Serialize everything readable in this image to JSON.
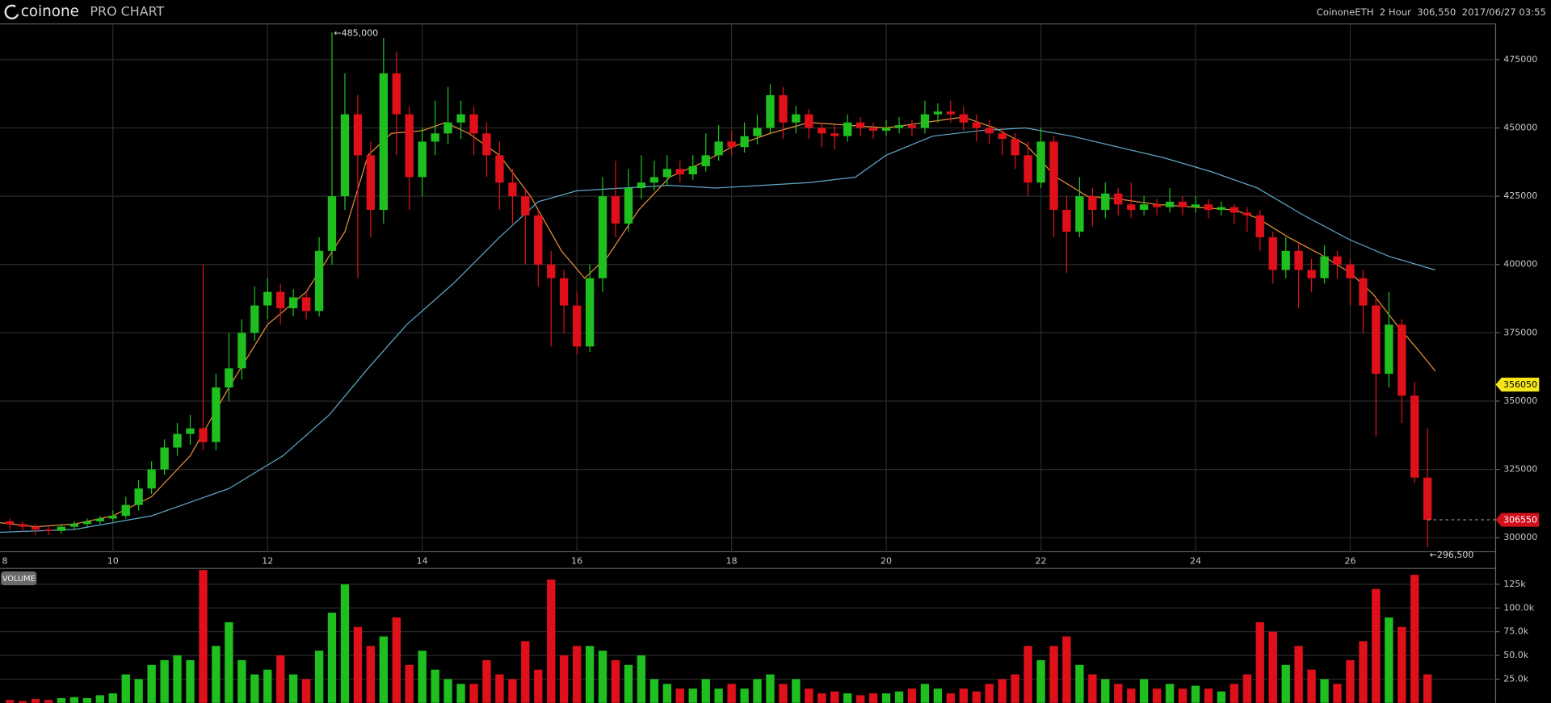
{
  "header": {
    "logo": "coinone",
    "product": "PRO CHART",
    "symbol": "CoinoneETH",
    "interval": "2 Hour",
    "price": "306,550",
    "time": "2017/06/27 03:55"
  },
  "chart_data": [
    {
      "type": "candlestick",
      "x": [
        8.667,
        8.833,
        9,
        9.167,
        9.333,
        9.5,
        9.667,
        9.833,
        10,
        10.167,
        10.333,
        10.5,
        10.667,
        10.833,
        11,
        11.167,
        11.333,
        11.5,
        11.667,
        11.833,
        12,
        12.167,
        12.333,
        12.5,
        12.667,
        12.833,
        13,
        13.167,
        13.333,
        13.5,
        13.667,
        13.833,
        14,
        14.167,
        14.333,
        14.5,
        14.667,
        14.833,
        15,
        15.167,
        15.333,
        15.5,
        15.667,
        15.833,
        16,
        16.167,
        16.333,
        16.5,
        16.667,
        16.833,
        17,
        17.167,
        17.333,
        17.5,
        17.667,
        17.833,
        18,
        18.167,
        18.333,
        18.5,
        18.667,
        18.833,
        19,
        19.167,
        19.333,
        19.5,
        19.667,
        19.833,
        20,
        20.167,
        20.333,
        20.5,
        20.667,
        20.833,
        21,
        21.167,
        21.333,
        21.5,
        21.667,
        21.833,
        22,
        22.167,
        22.333,
        22.5,
        22.667,
        22.833,
        23,
        23.167,
        23.333,
        23.5,
        23.667,
        23.833,
        24,
        24.167,
        24.333,
        24.5,
        24.667,
        24.833,
        25,
        25.167,
        25.333,
        25.5,
        25.667,
        25.833,
        26,
        26.167,
        26.333,
        26.5,
        26.667,
        26.833,
        27
      ],
      "open": [
        306000,
        305000,
        304000,
        303000,
        302500,
        304000,
        305000,
        306000,
        307000,
        308000,
        312000,
        318000,
        325000,
        333000,
        338000,
        340000,
        335000,
        355000,
        362000,
        375000,
        385000,
        390000,
        384000,
        388000,
        383000,
        405000,
        425000,
        455000,
        440000,
        420000,
        470000,
        455000,
        432000,
        445000,
        448000,
        452000,
        455000,
        448000,
        440000,
        430000,
        425000,
        418000,
        400000,
        395000,
        385000,
        370000,
        395000,
        425000,
        415000,
        428000,
        430000,
        432000,
        435000,
        433000,
        436000,
        440000,
        445000,
        443000,
        447000,
        450000,
        462000,
        452000,
        455000,
        450000,
        448000,
        447000,
        452000,
        450000,
        449000,
        450000,
        451000,
        450000,
        455000,
        456000,
        455000,
        452000,
        450000,
        448000,
        446000,
        440000,
        430000,
        445000,
        420000,
        412000,
        425000,
        420000,
        426000,
        422000,
        420000,
        422000,
        421000,
        423000,
        421000,
        422000,
        420000,
        421000,
        419000,
        418000,
        410000,
        398000,
        405000,
        398000,
        395000,
        403000,
        400000,
        395000,
        385000,
        360000,
        378000,
        352000,
        322000
      ],
      "high": [
        307000,
        306000,
        305000,
        304000,
        305000,
        306000,
        307000,
        308000,
        310000,
        315000,
        321000,
        328000,
        336000,
        342000,
        345000,
        400000,
        360000,
        375000,
        380000,
        392000,
        395000,
        393000,
        391000,
        390000,
        410000,
        485000,
        470000,
        462000,
        445000,
        483000,
        478000,
        458000,
        450000,
        460000,
        465000,
        460000,
        458000,
        452000,
        445000,
        435000,
        428000,
        420000,
        405000,
        398000,
        390000,
        400000,
        432000,
        438000,
        435000,
        440000,
        438000,
        440000,
        438000,
        440000,
        448000,
        451000,
        449000,
        452000,
        455000,
        466000,
        465000,
        458000,
        457000,
        452000,
        451000,
        455000,
        454000,
        452000,
        453000,
        454000,
        453000,
        460000,
        459000,
        460000,
        458000,
        455000,
        453000,
        450000,
        448000,
        445000,
        450000,
        447000,
        425000,
        432000,
        428000,
        430000,
        428000,
        430000,
        425000,
        424000,
        428000,
        425000,
        425000,
        424000,
        423000,
        422000,
        421000,
        420000,
        412000,
        410000,
        408000,
        402000,
        407000,
        405000,
        402000,
        398000,
        388000,
        390000,
        380000,
        357000,
        340000
      ],
      "low": [
        303000,
        302000,
        301000,
        301000,
        301500,
        303000,
        304000,
        305000,
        306000,
        307000,
        310000,
        316000,
        323000,
        330000,
        334000,
        332000,
        332000,
        350000,
        358000,
        372000,
        380000,
        378000,
        381000,
        380000,
        381000,
        400000,
        420000,
        395000,
        410000,
        415000,
        440000,
        420000,
        425000,
        440000,
        444000,
        446000,
        440000,
        432000,
        420000,
        415000,
        400000,
        392000,
        370000,
        375000,
        367000,
        368000,
        390000,
        410000,
        412000,
        424000,
        427000,
        429000,
        430000,
        431000,
        434000,
        438000,
        440000,
        441000,
        444000,
        448000,
        446000,
        448000,
        446000,
        443000,
        442000,
        445000,
        447000,
        446000,
        447000,
        448000,
        447000,
        448000,
        452000,
        452000,
        449000,
        445000,
        444000,
        440000,
        435000,
        425000,
        428000,
        410000,
        397000,
        410000,
        414000,
        417000,
        418000,
        417000,
        418000,
        418000,
        419000,
        418000,
        419000,
        417000,
        418000,
        415000,
        412000,
        405000,
        393000,
        395000,
        384000,
        390000,
        393000,
        395000,
        385000,
        375000,
        337000,
        355000,
        342000,
        320000,
        296500
      ],
      "close": [
        305000,
        304000,
        303000,
        302500,
        304000,
        305000,
        306000,
        307000,
        308000,
        312000,
        318000,
        325000,
        333000,
        338000,
        340000,
        335000,
        355000,
        362000,
        375000,
        385000,
        390000,
        384000,
        388000,
        383000,
        405000,
        425000,
        455000,
        440000,
        420000,
        470000,
        455000,
        432000,
        445000,
        448000,
        452000,
        455000,
        448000,
        440000,
        430000,
        425000,
        418000,
        400000,
        395000,
        385000,
        370000,
        395000,
        425000,
        415000,
        428000,
        430000,
        432000,
        435000,
        433000,
        436000,
        440000,
        445000,
        443000,
        447000,
        450000,
        462000,
        452000,
        455000,
        450000,
        448000,
        447000,
        452000,
        450000,
        449000,
        450000,
        451000,
        450000,
        455000,
        456000,
        455000,
        452000,
        450000,
        448000,
        446000,
        440000,
        430000,
        445000,
        420000,
        412000,
        425000,
        420000,
        426000,
        422000,
        420000,
        422000,
        421000,
        423000,
        421000,
        422000,
        420000,
        421000,
        419000,
        418000,
        410000,
        398000,
        405000,
        398000,
        395000,
        403000,
        400000,
        395000,
        385000,
        360000,
        378000,
        352000,
        322000,
        306550
      ],
      "up_color": "#1fbf1f",
      "down_color": "#e0101a",
      "lines": [
        {
          "color": "#e8903a",
          "x": [
            8.54,
            9,
            9.5,
            10,
            10.5,
            11,
            11.5,
            12,
            12.5,
            13,
            13.3,
            13.6,
            14,
            14.3,
            14.6,
            15,
            15.4,
            15.8,
            16.1,
            16.4,
            16.8,
            17.2,
            17.6,
            18,
            18.5,
            19,
            19.5,
            20,
            20.5,
            21,
            21.4,
            21.8,
            22.2,
            22.6,
            23,
            23.5,
            24,
            24.5,
            24.8,
            25.2,
            25.6,
            26,
            26.3,
            26.6,
            26.9,
            27.1
          ],
          "values": [
            305500,
            304000,
            305000,
            308000,
            315000,
            330000,
            355000,
            378000,
            390000,
            412000,
            440000,
            448000,
            449000,
            452000,
            448000,
            440000,
            425000,
            405000,
            395000,
            403000,
            420000,
            432000,
            437000,
            443000,
            448000,
            452000,
            451000,
            450000,
            452000,
            454000,
            450000,
            444000,
            432000,
            425000,
            424000,
            422000,
            421000,
            420000,
            417000,
            410000,
            404000,
            397000,
            389000,
            378000,
            368000,
            361000
          ]
        },
        {
          "color": "#5fa8c8",
          "x": [
            8.54,
            9.5,
            10.5,
            11.5,
            12.2,
            12.8,
            13.3,
            13.8,
            14.4,
            15,
            15.5,
            16,
            16.6,
            17.2,
            17.8,
            18.4,
            19,
            19.6,
            20,
            20.6,
            21.2,
            21.8,
            22.4,
            23,
            23.6,
            24.2,
            24.8,
            25.4,
            26,
            26.5,
            27.1
          ],
          "values": [
            302000,
            303000,
            308000,
            318000,
            330000,
            345000,
            362000,
            378000,
            393000,
            410000,
            423000,
            427000,
            428000,
            429000,
            428000,
            429000,
            430000,
            432000,
            440000,
            447000,
            449000,
            450000,
            447000,
            443000,
            439000,
            434000,
            428000,
            418000,
            409000,
            403000,
            398000
          ]
        }
      ],
      "price_markers": [
        {
          "value": 356050,
          "color": "#f5e61a"
        },
        {
          "value": 306550,
          "color": "#d0101a"
        }
      ],
      "annotations": [
        {
          "text": "←485,000",
          "x": 12.833,
          "value": 485000
        },
        {
          "text": "←296,500",
          "x": 27,
          "value": 296500
        }
      ],
      "xlim": [
        8.54,
        27.88
      ],
      "xticks": [
        8,
        10,
        12,
        14,
        16,
        18,
        20,
        22,
        24,
        26
      ],
      "ylim": [
        294900,
        488100
      ],
      "yticks": [
        300000,
        325000,
        350000,
        375000,
        400000,
        425000,
        450000,
        475000
      ],
      "grid": true
    },
    {
      "type": "bar",
      "title": "VOLUME",
      "values": [
        3000,
        2000,
        4000,
        3000,
        5000,
        6000,
        5000,
        8000,
        10000,
        30000,
        25000,
        40000,
        45000,
        50000,
        45000,
        140000,
        60000,
        85000,
        45000,
        30000,
        35000,
        50000,
        30000,
        25000,
        55000,
        95000,
        125000,
        80000,
        60000,
        70000,
        90000,
        40000,
        55000,
        35000,
        25000,
        20000,
        20000,
        45000,
        30000,
        25000,
        65000,
        35000,
        130000,
        50000,
        60000,
        60000,
        55000,
        45000,
        40000,
        50000,
        25000,
        20000,
        15000,
        15000,
        25000,
        15000,
        20000,
        15000,
        25000,
        30000,
        20000,
        25000,
        15000,
        10000,
        12000,
        10000,
        8000,
        10000,
        10000,
        12000,
        15000,
        20000,
        15000,
        10000,
        15000,
        12000,
        20000,
        25000,
        30000,
        60000,
        45000,
        60000,
        70000,
        40000,
        30000,
        25000,
        20000,
        15000,
        25000,
        15000,
        20000,
        15000,
        18000,
        15000,
        12000,
        20000,
        30000,
        85000,
        75000,
        40000,
        60000,
        35000,
        25000,
        20000,
        45000,
        65000,
        120000,
        90000,
        80000,
        135000,
        30000
      ],
      "ylim": [
        0,
        141700
      ],
      "yticks": [
        {
          "value": 25000,
          "label": "25.0k"
        },
        {
          "value": 50000,
          "label": "50.0k"
        },
        {
          "value": 75000,
          "label": "75.0k"
        },
        {
          "value": 100000,
          "label": "100.0k"
        },
        {
          "value": 125000,
          "label": "125k"
        }
      ],
      "grid": true
    }
  ]
}
